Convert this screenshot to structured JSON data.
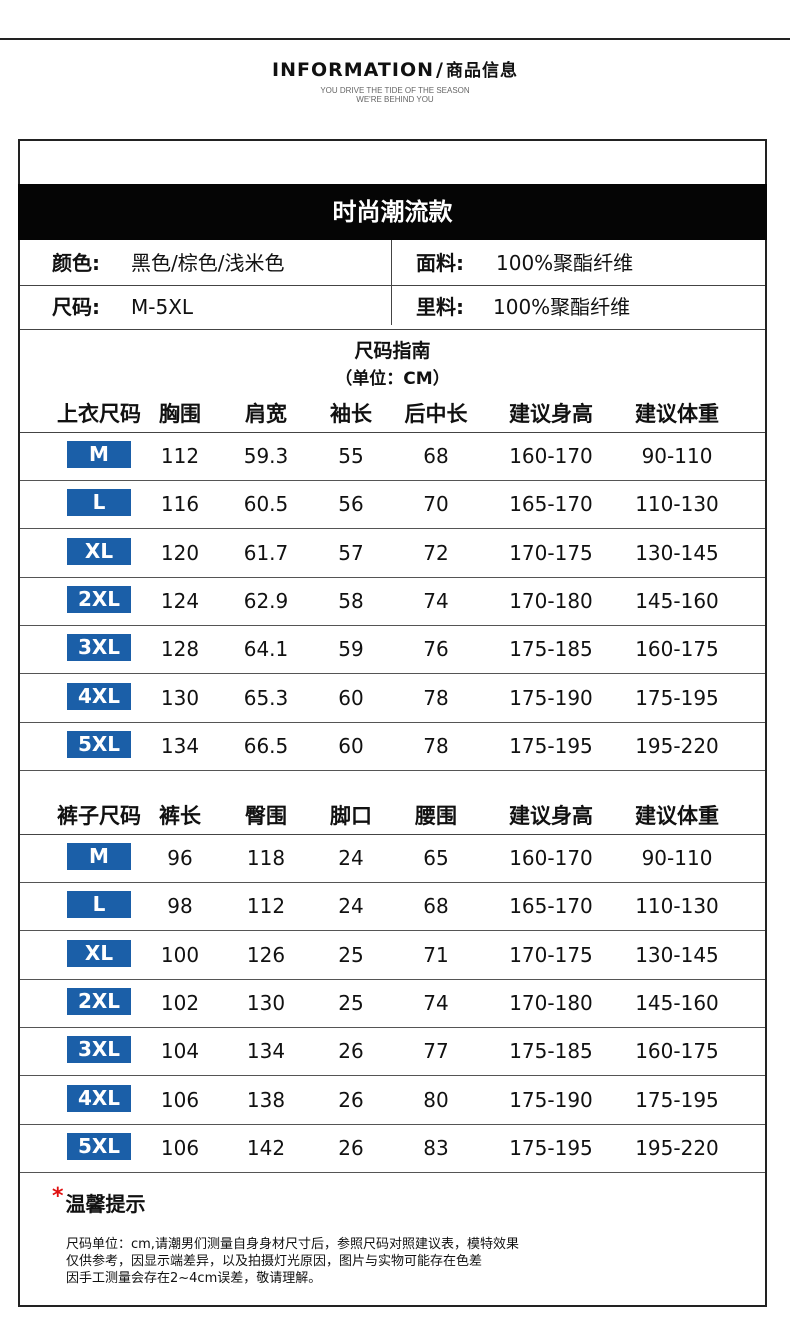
{
  "header": {
    "title_en": "INFORMATION",
    "title_slash": "/",
    "title_cn": "商品信息",
    "subtitle_line1": "YOU DRIVE THE TIDE OF THE SEASON",
    "subtitle_line2": "WE'RE BEHIND YOU"
  },
  "banner": {
    "title": "时尚潮流款"
  },
  "attributes": {
    "color_label": "颜色:",
    "color_value": "黑色/棕色/浅米色",
    "fabric_label": "面料:",
    "fabric_value": "100%聚酯纤维",
    "size_label": "尺码:",
    "size_value": "M-5XL",
    "lining_label": "里料:",
    "lining_value": "100%聚酯纤维"
  },
  "size_guide": {
    "title": "尺码指南",
    "unit": "（单位：CM）"
  },
  "top_table": {
    "headers": [
      "上衣尺码",
      "胸围",
      "肩宽",
      "袖长",
      "后中长",
      "建议身高",
      "建议体重"
    ],
    "rows": [
      [
        "M",
        "112",
        "59.3",
        "55",
        "68",
        "160-170",
        "90-110"
      ],
      [
        "L",
        "116",
        "60.5",
        "56",
        "70",
        "165-170",
        "110-130"
      ],
      [
        "XL",
        "120",
        "61.7",
        "57",
        "72",
        "170-175",
        "130-145"
      ],
      [
        "2XL",
        "124",
        "62.9",
        "58",
        "74",
        "170-180",
        "145-160"
      ],
      [
        "3XL",
        "128",
        "64.1",
        "59",
        "76",
        "175-185",
        "160-175"
      ],
      [
        "4XL",
        "130",
        "65.3",
        "60",
        "78",
        "175-190",
        "175-195"
      ],
      [
        "5XL",
        "134",
        "66.5",
        "60",
        "78",
        "175-195",
        "195-220"
      ]
    ]
  },
  "pants_table": {
    "headers": [
      "裤子尺码",
      "裤长",
      "臀围",
      "脚口",
      "腰围",
      "建议身高",
      "建议体重"
    ],
    "rows": [
      [
        "M",
        "96",
        "118",
        "24",
        "65",
        "160-170",
        "90-110"
      ],
      [
        "L",
        "98",
        "112",
        "24",
        "68",
        "165-170",
        "110-130"
      ],
      [
        "XL",
        "100",
        "126",
        "25",
        "71",
        "170-175",
        "130-145"
      ],
      [
        "2XL",
        "102",
        "130",
        "25",
        "74",
        "170-180",
        "145-160"
      ],
      [
        "3XL",
        "104",
        "134",
        "26",
        "77",
        "175-185",
        "160-175"
      ],
      [
        "4XL",
        "106",
        "138",
        "26",
        "80",
        "175-190",
        "175-195"
      ],
      [
        "5XL",
        "106",
        "142",
        "26",
        "83",
        "175-195",
        "195-220"
      ]
    ]
  },
  "tips": {
    "star": "*",
    "title": "温馨提示",
    "line1": "尺码单位：cm,请潮男们测量自身身材尺寸后，参照尺码对照建议表，模特效果",
    "line2": "仅供参考，因显示端差异，以及拍摄灯光原因，图片与实物可能存在色差",
    "line3": "因手工测量会存在2~4cm误差，敬请理解。"
  },
  "colors": {
    "badge_blue": "#1b5fa8",
    "banner_black": "#050505",
    "star_red": "#e01010"
  }
}
